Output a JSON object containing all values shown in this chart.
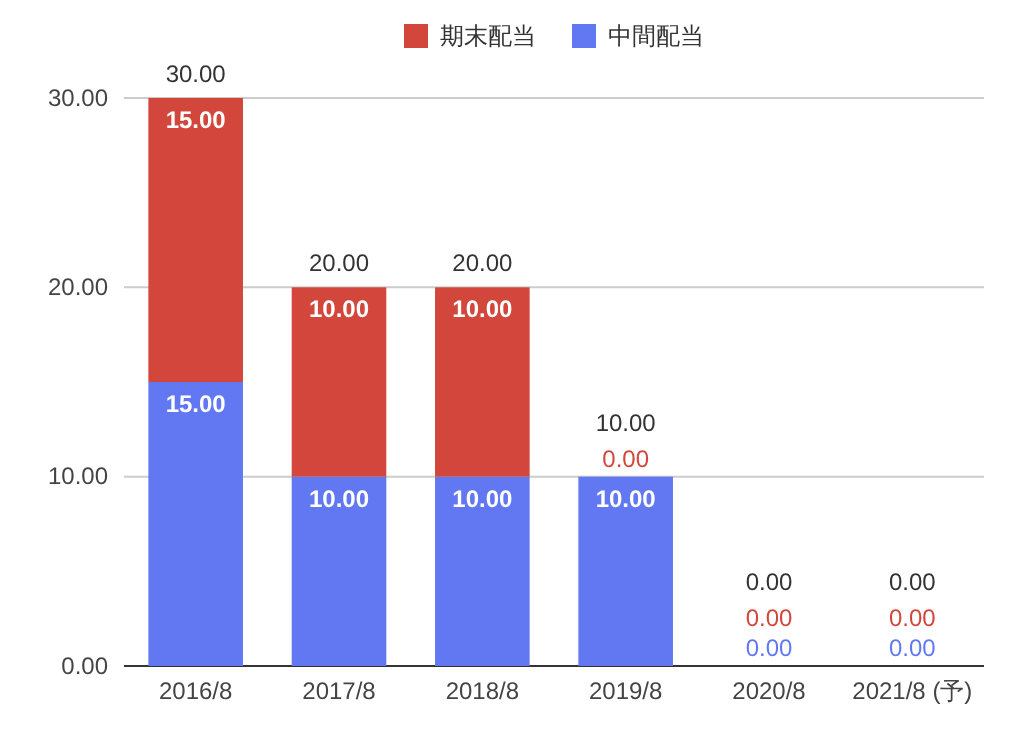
{
  "chart_data": {
    "type": "bar",
    "stacked": true,
    "categories": [
      "2016/8",
      "2017/8",
      "2018/8",
      "2019/8",
      "2020/8",
      "2021/8 (予)"
    ],
    "series": [
      {
        "name": "中間配当",
        "color": "#6278f2",
        "values": [
          15,
          10,
          10,
          10,
          0,
          0
        ],
        "value_labels": [
          "15.00",
          "10.00",
          "10.00",
          "10.00",
          "0.00",
          "0.00"
        ]
      },
      {
        "name": "期末配当",
        "color": "#d2463b",
        "values": [
          15,
          10,
          10,
          0,
          0,
          0
        ],
        "value_labels": [
          "15.00",
          "10.00",
          "10.00",
          "0.00",
          "0.00",
          "0.00"
        ]
      }
    ],
    "totals": [
      "30.00",
      "20.00",
      "20.00",
      "10.00",
      "0.00",
      "0.00"
    ],
    "ylim": [
      0,
      30
    ],
    "yticks": [
      {
        "value": 0,
        "label": "0.00"
      },
      {
        "value": 10,
        "label": "10.00"
      },
      {
        "value": 20,
        "label": "20.00"
      },
      {
        "value": 30,
        "label": "30.00"
      }
    ],
    "grid": "y",
    "legend": "top"
  }
}
